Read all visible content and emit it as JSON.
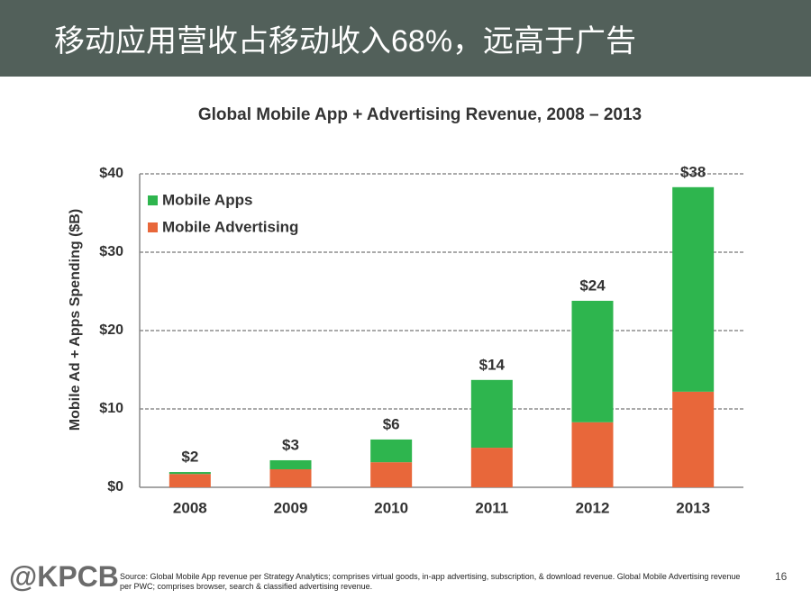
{
  "header": {
    "title": "移动应用营收占移动收入68%，远高于广告"
  },
  "chart_data": {
    "type": "stacked_bar",
    "title": "Global Mobile App + Advertising Revenue, 2008 – 2013",
    "y_label": "Mobile Ad + Apps Spending ($B)",
    "categories": [
      "2008",
      "2009",
      "2010",
      "2011",
      "2012",
      "2013"
    ],
    "series": [
      {
        "name": "Mobile Apps",
        "color": "#2eb54e",
        "values": [
          0.25,
          1.15,
          2.9,
          8.65,
          15.5,
          26.1
        ]
      },
      {
        "name": "Mobile Advertising",
        "color": "#e8673a",
        "values": [
          1.7,
          2.3,
          3.2,
          5.05,
          8.3,
          12.2
        ]
      }
    ],
    "total_labels": [
      "$2",
      "$3",
      "$6",
      "$14",
      "$24",
      "$38"
    ],
    "ylim": [
      0,
      40
    ],
    "yticks": [
      {
        "value": 0,
        "label": "$0"
      },
      {
        "value": 10,
        "label": "$10"
      },
      {
        "value": 20,
        "label": "$20"
      },
      {
        "value": 30,
        "label": "$30"
      },
      {
        "value": 40,
        "label": "$40"
      }
    ],
    "grid": true,
    "legend": "top-left"
  },
  "footer": {
    "logo": "@KPCB",
    "source": "Source: Global Mobile App revenue per Strategy Analytics; comprises virtual goods, in-app advertising, subscription, & download revenue. Global Mobile Advertising revenue per PWC; comprises browser, search & classified advertising revenue.",
    "page": "16"
  }
}
